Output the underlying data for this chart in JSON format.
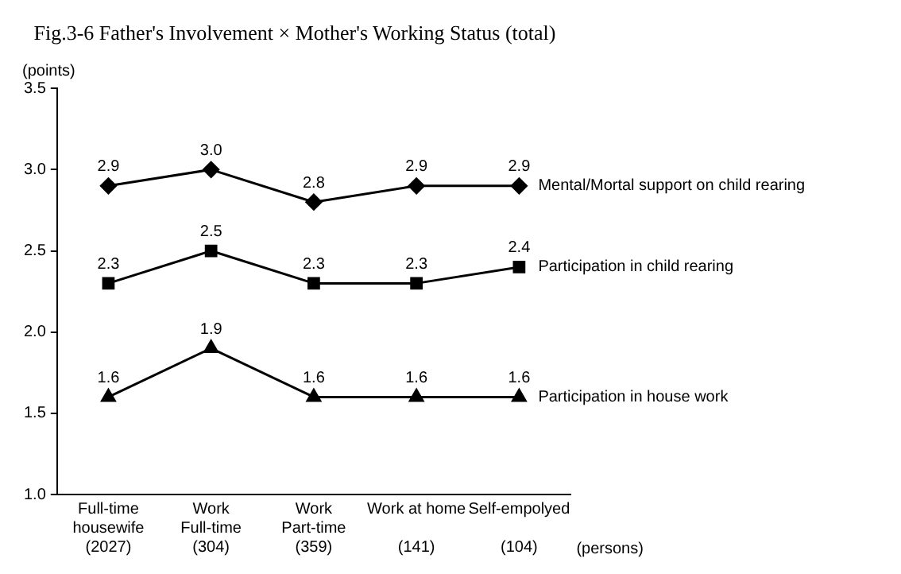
{
  "chart_data": {
    "type": "line",
    "title": "Fig.3-6 Father's Involvement × Mother's Working Status (total)",
    "ylabel": "(points)",
    "categories": [
      "Full-time\nhousewife\n(2027)",
      "Work\nFull-time\n(304)",
      "Work\nPart-time\n(359)",
      "Work at home\n\n(141)",
      "Self-empolyed\n\n(104)"
    ],
    "series": [
      {
        "name": "Mental/Mortal support on child rearing",
        "color": "#000000",
        "marker": "diamond",
        "values": [
          2.9,
          3.0,
          2.8,
          2.9,
          2.9
        ],
        "value_labels": [
          "2.9",
          "3.0",
          "2.8",
          "2.9",
          "2.9"
        ]
      },
      {
        "name": "Participation in child rearing",
        "color": "#000000",
        "marker": "square",
        "values": [
          2.3,
          2.5,
          2.3,
          2.3,
          2.4
        ],
        "value_labels": [
          "2.3",
          "2.5",
          "2.3",
          "2.3",
          "2.4"
        ]
      },
      {
        "name": "Participation in house work",
        "color": "#000000",
        "marker": "triangle",
        "values": [
          1.6,
          1.9,
          1.6,
          1.6,
          1.6
        ],
        "value_labels": [
          "1.6",
          "1.9",
          "1.6",
          "1.6",
          "1.6"
        ]
      }
    ],
    "ylim": [
      1.0,
      3.5
    ],
    "yticks": [
      {
        "value": 1.0,
        "label": "1.0"
      },
      {
        "value": 1.5,
        "label": "1.5"
      },
      {
        "value": 2.0,
        "label": "2.0"
      },
      {
        "value": 2.5,
        "label": "2.5"
      },
      {
        "value": 3.0,
        "label": "3.0"
      },
      {
        "value": 3.5,
        "label": "3.5"
      }
    ],
    "grid": false,
    "legend": false,
    "line_style": "solid",
    "annotations": [
      "(persons)"
    ]
  }
}
